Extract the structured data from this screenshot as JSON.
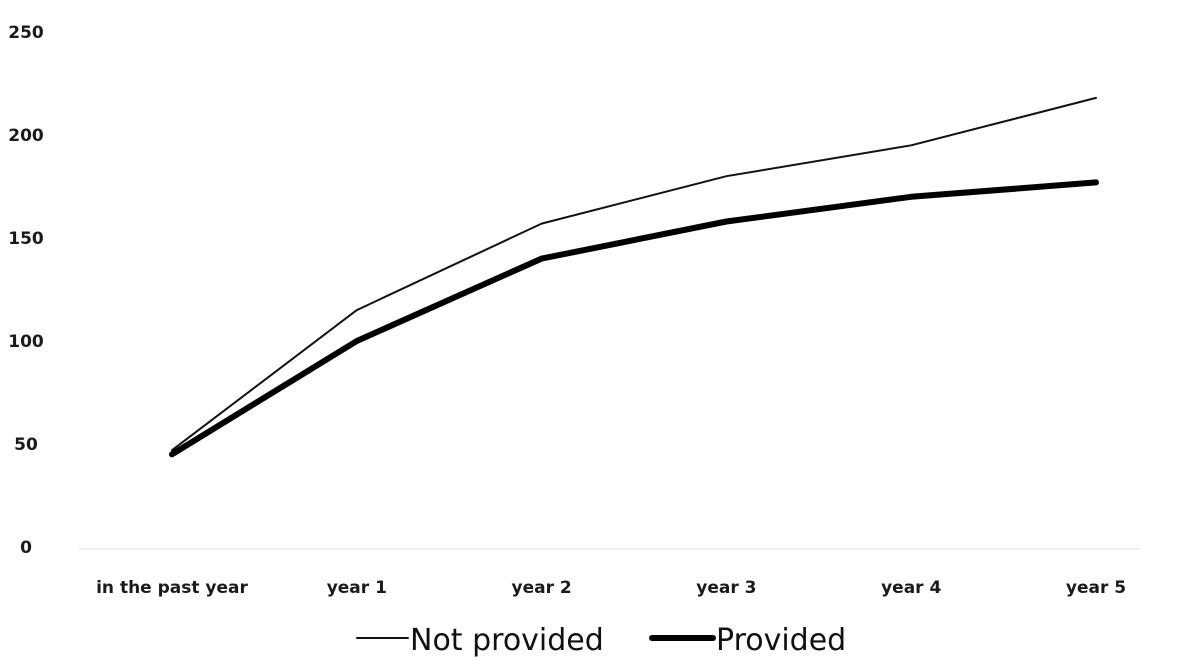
{
  "chart_data": {
    "type": "line",
    "title": "",
    "xlabel": "",
    "ylabel": "",
    "categories": [
      "in the past year",
      "year 1",
      "year 2",
      "year 3",
      "year 4",
      "year 5"
    ],
    "ylim": [
      0,
      250
    ],
    "yticks": [
      0,
      50,
      100,
      150,
      200,
      250
    ],
    "grid": false,
    "legend_position": "bottom",
    "series": [
      {
        "name": "Not provided",
        "values": [
          47,
          115,
          157,
          180,
          195,
          218
        ],
        "color": "#111111",
        "style": "thin"
      },
      {
        "name": "Provided",
        "values": [
          45,
          100,
          140,
          158,
          170,
          177
        ],
        "color": "#000000",
        "style": "thick"
      }
    ]
  }
}
